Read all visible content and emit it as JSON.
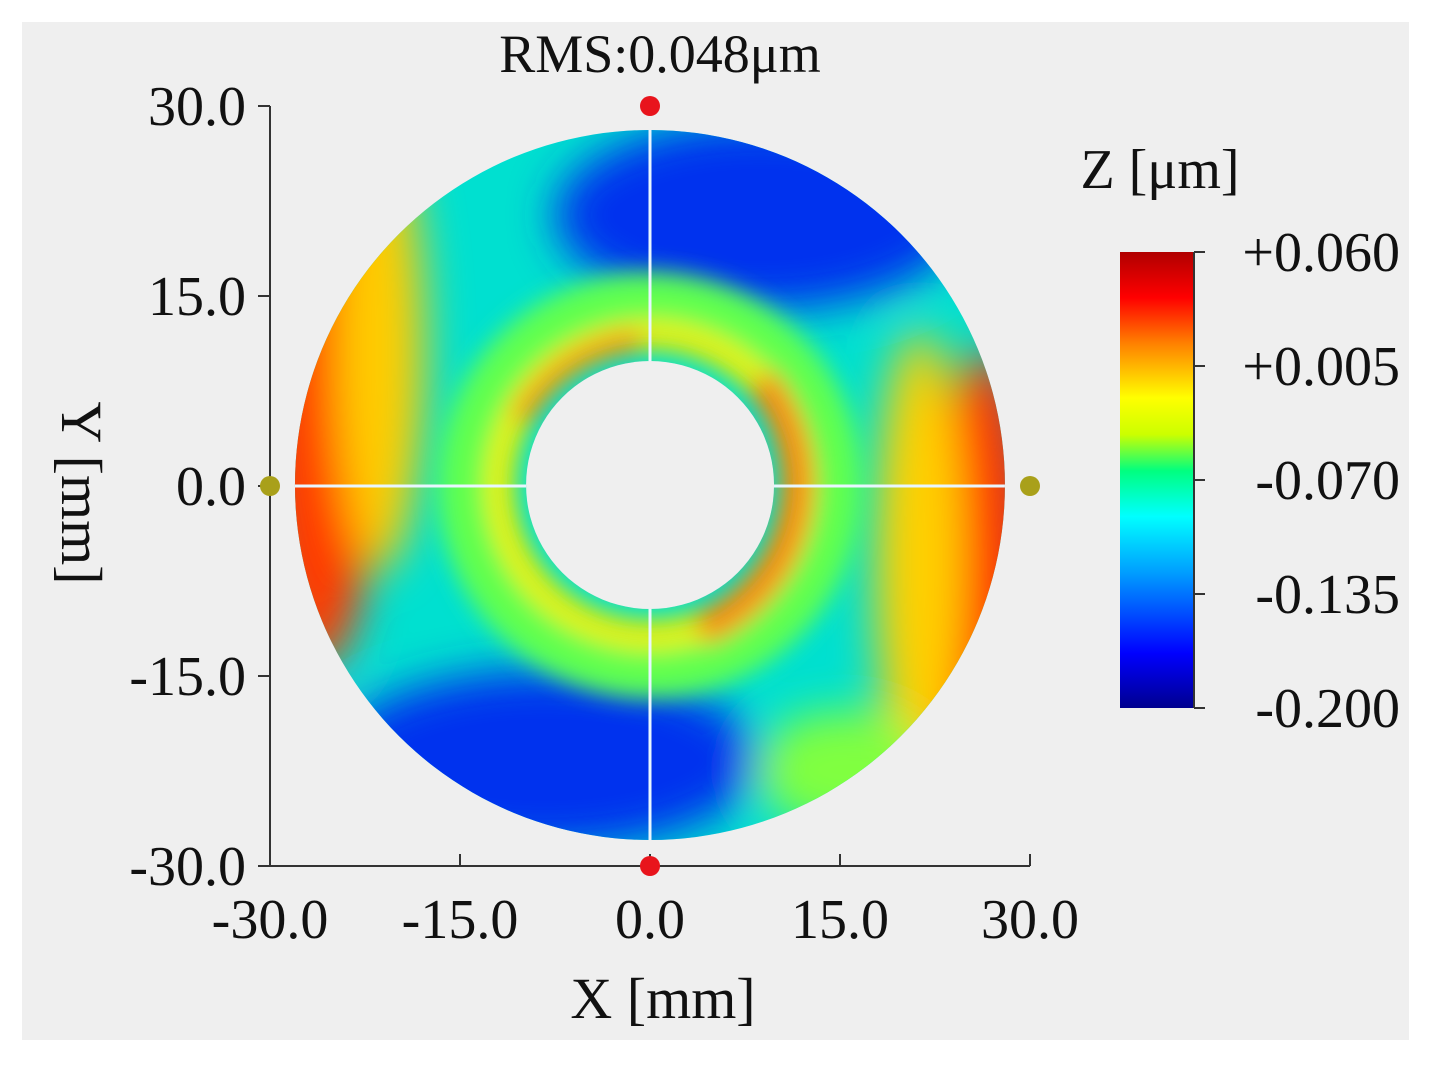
{
  "chart_data": {
    "type": "heatmap",
    "title": "RMS:0.048μm",
    "xlabel": "X [mm]",
    "ylabel": "Y [mm]",
    "xlim": [
      -30,
      30
    ],
    "ylim": [
      -30,
      30
    ],
    "x_ticks": [
      -30,
      -15,
      0,
      15,
      30
    ],
    "y_ticks": [
      30,
      15,
      0,
      -15,
      -30
    ],
    "x_tick_labels": [
      "-30.0",
      "-15.0",
      "0.0",
      "15.0",
      "30.0"
    ],
    "y_tick_labels": [
      "30.0",
      "15.0",
      "0.0",
      "-15.0",
      "-30.0"
    ],
    "aperture": {
      "outer_radius_mm": 28,
      "inner_radius_mm": 9.8,
      "center": [
        0,
        0
      ]
    },
    "surface_description_regions": [
      {
        "label": "left rim",
        "approx_z": 0.02
      },
      {
        "label": "upper band",
        "approx_z": -0.18
      },
      {
        "label": "lower band",
        "approx_z": -0.18
      },
      {
        "label": "inner ring",
        "approx_z": 0.0
      },
      {
        "label": "right rim",
        "approx_z": 0.01
      }
    ],
    "markers": [
      {
        "name": "top",
        "x": 0,
        "y": 30,
        "color": "#e8141c"
      },
      {
        "name": "bottom",
        "x": 0,
        "y": -30,
        "color": "#e8141c"
      },
      {
        "name": "left",
        "x": -30,
        "y": 0,
        "color": "#a9a01a"
      },
      {
        "name": "right",
        "x": 30,
        "y": 0,
        "color": "#a9a01a"
      }
    ],
    "colorbar": {
      "label": "Z [μm]",
      "range": [
        -0.2,
        0.06
      ],
      "tick_values": [
        0.06,
        0.005,
        -0.07,
        -0.135,
        -0.2
      ],
      "tick_labels": [
        "+0.060",
        "+0.005",
        "-0.070",
        "-0.135",
        "-0.200"
      ],
      "colormap": [
        "#00008f",
        "#0000ff",
        "#00a0ff",
        "#00ffff",
        "#00ff80",
        "#ccff00",
        "#ffff00",
        "#ff8000",
        "#ff0000",
        "#b00000"
      ]
    }
  }
}
